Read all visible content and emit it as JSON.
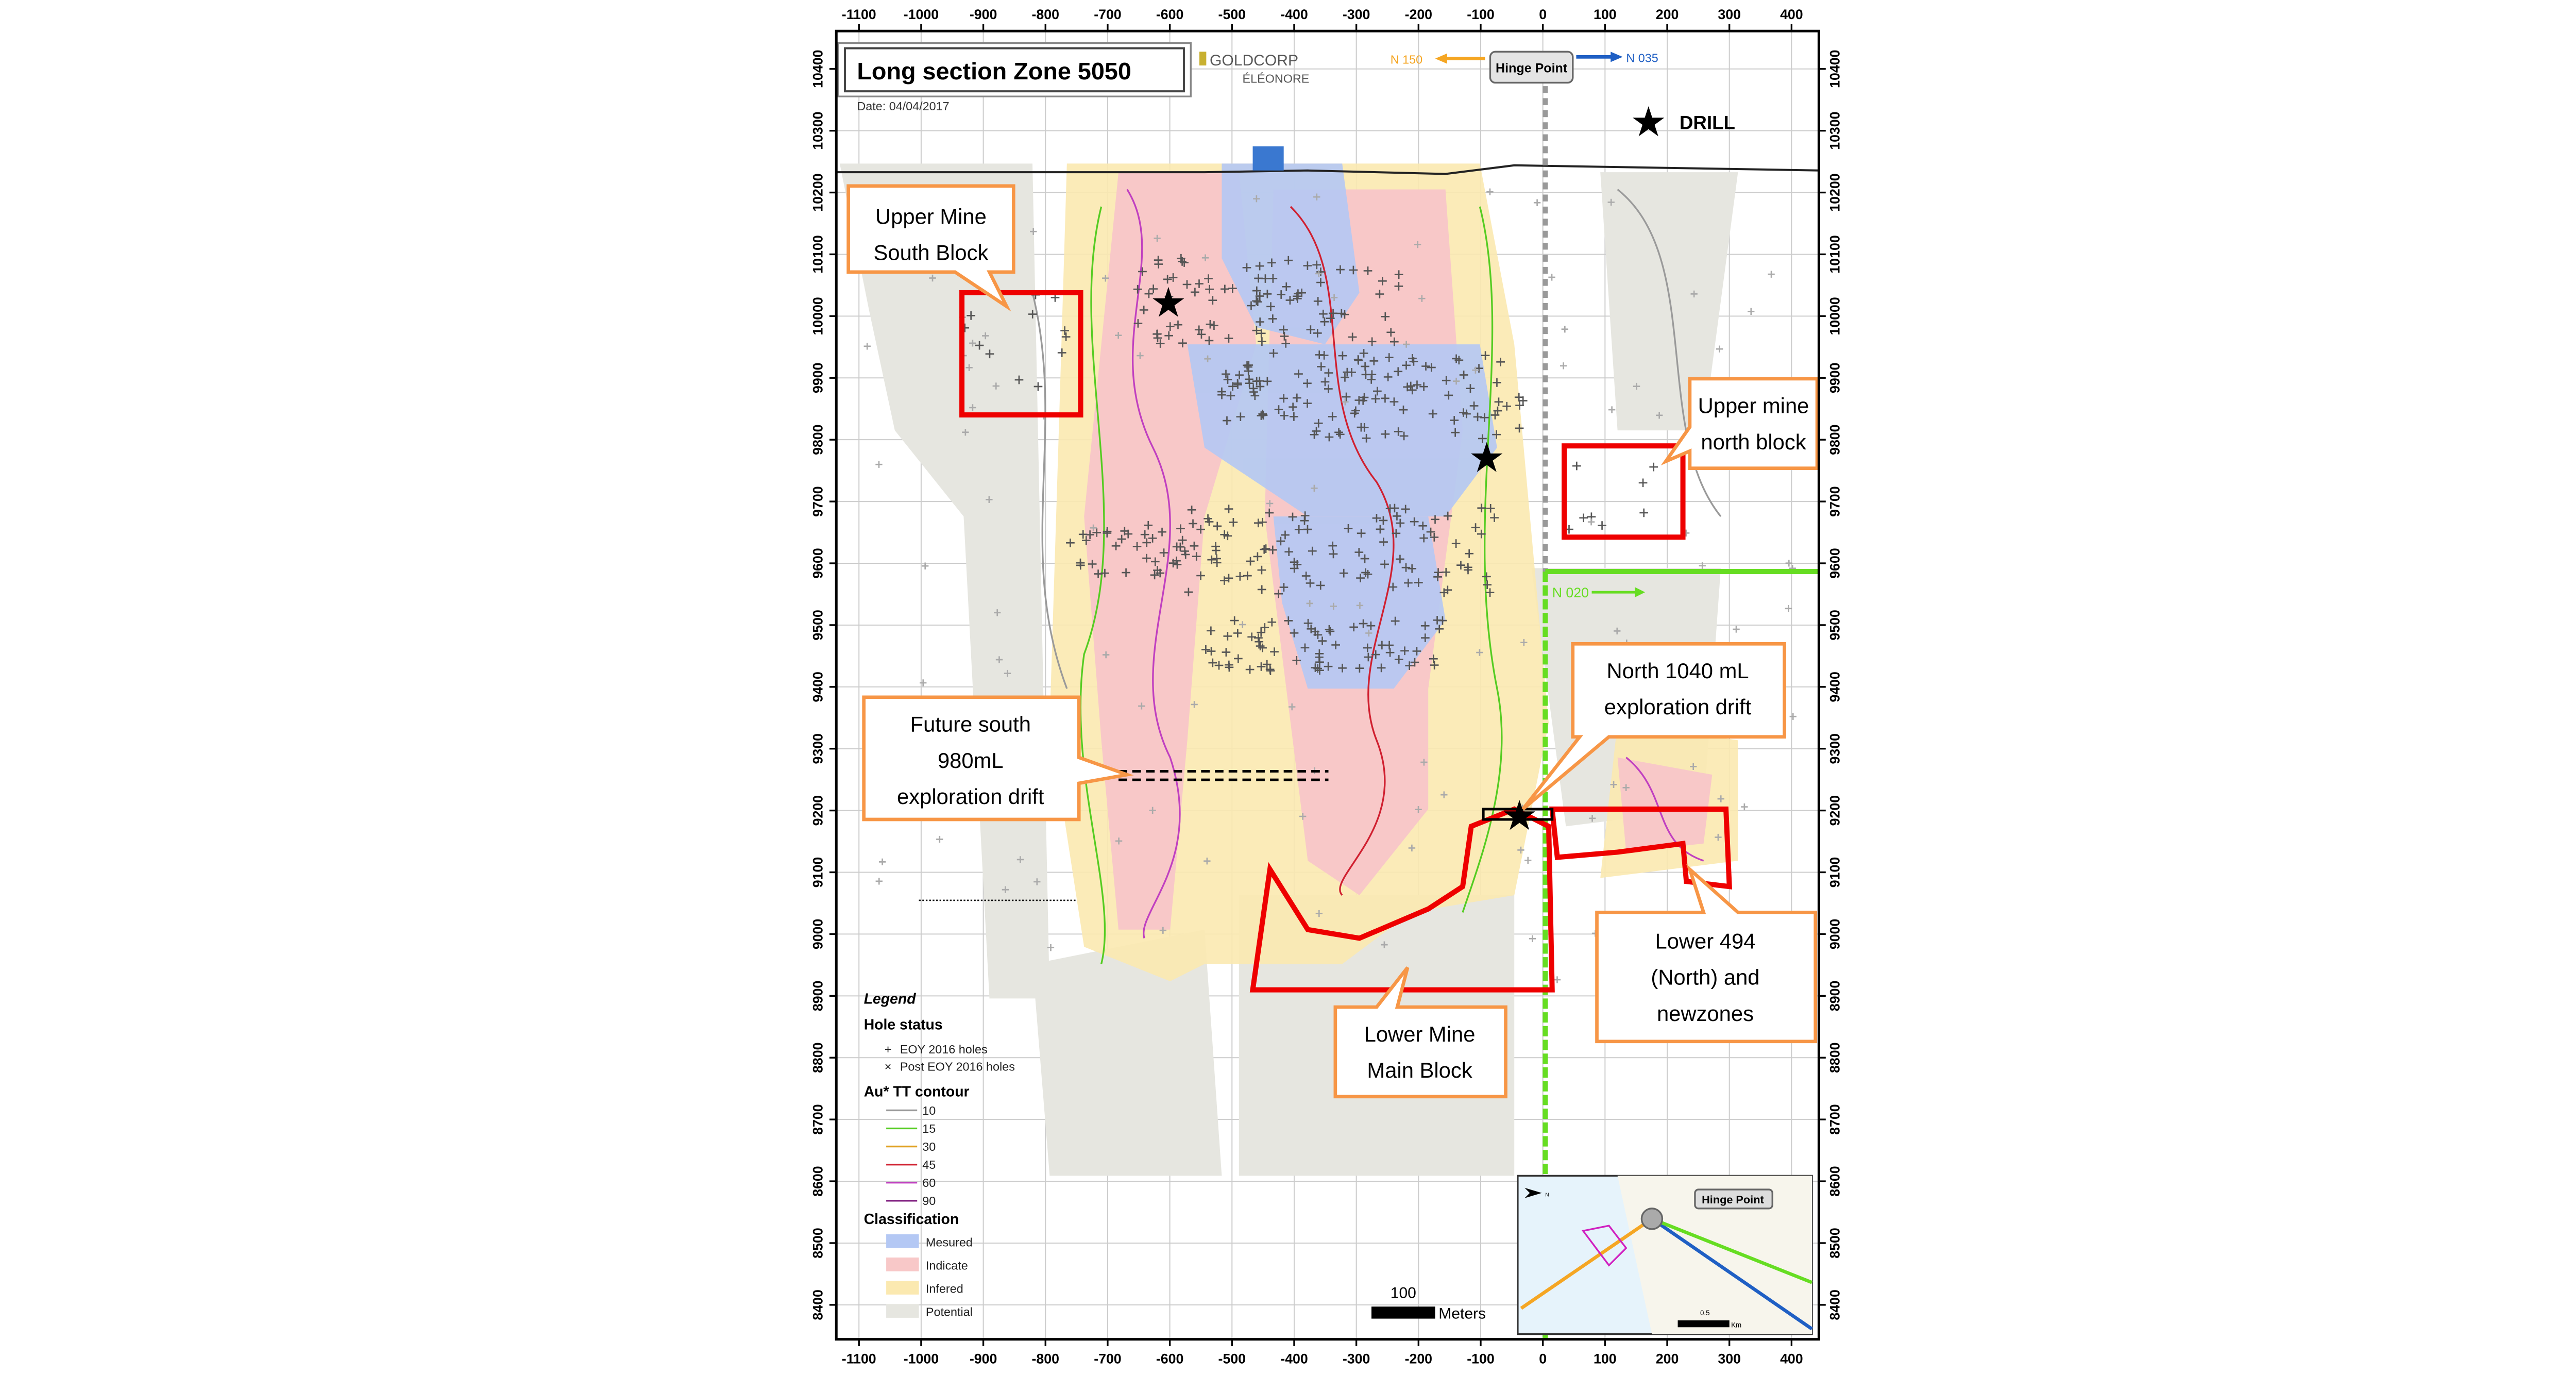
{
  "title": "Long section Zone 5050",
  "date": "Date: 04/04/2017",
  "logo": {
    "brand": "GOLDCORP",
    "site": "ÉLÉONORE"
  },
  "hinge_point": {
    "label": "Hinge Point",
    "left_arrow": "N 150",
    "right_arrow": "N 035",
    "left_color": "#f5a623",
    "right_color": "#1f5fc4"
  },
  "green_arrow": {
    "label": "N 020",
    "color": "#66dd22"
  },
  "drill_label": "DRILL",
  "axes": {
    "x_ticks": [
      -1100,
      -1000,
      -900,
      -800,
      -700,
      -600,
      -500,
      -400,
      -300,
      -200,
      -100,
      0,
      100,
      200,
      300,
      400
    ],
    "y_ticks": [
      8400,
      8500,
      8600,
      8700,
      8800,
      8900,
      9000,
      9100,
      9200,
      9300,
      9400,
      9500,
      9600,
      9700,
      9800,
      9900,
      10000,
      10100,
      10200,
      10300,
      10400
    ],
    "x_range": [
      -1100,
      400
    ],
    "y_range": [
      8400,
      10400
    ]
  },
  "callouts": [
    {
      "id": "upper-mine-south-block",
      "lines": [
        "Upper Mine",
        "South Block"
      ]
    },
    {
      "id": "upper-mine-north-block",
      "lines": [
        "Upper mine",
        "north block"
      ]
    },
    {
      "id": "future-south-drift",
      "lines": [
        "Future south",
        "980mL",
        "exploration drift"
      ]
    },
    {
      "id": "north-1040-drift",
      "lines": [
        "North 1040 mL",
        "exploration drift"
      ]
    },
    {
      "id": "lower-494",
      "lines": [
        "Lower 494",
        "(North) and",
        "newzones"
      ]
    },
    {
      "id": "lower-mine-main-block",
      "lines": [
        "Lower Mine",
        "Main Block"
      ]
    }
  ],
  "legend": {
    "title": "Legend",
    "hole_status": {
      "heading": "Hole status",
      "items": [
        "EOY 2016 holes",
        "Post EOY 2016 holes"
      ]
    },
    "contour": {
      "heading": "Au* TT contour",
      "items": [
        {
          "label": "10",
          "color": "#9a9a9a"
        },
        {
          "label": "15",
          "color": "#55cc22"
        },
        {
          "label": "30",
          "color": "#e0a020"
        },
        {
          "label": "45",
          "color": "#d02030"
        },
        {
          "label": "60",
          "color": "#c040c0"
        },
        {
          "label": "90",
          "color": "#802080"
        }
      ]
    },
    "classification": {
      "heading": "Classification",
      "items": [
        {
          "label": "Mesured",
          "color": "#b4c8f4"
        },
        {
          "label": "Indicate",
          "color": "#f8c8c8"
        },
        {
          "label": "Infered",
          "color": "#fbe9b0"
        },
        {
          "label": "Potential",
          "color": "#e6e6e0"
        }
      ]
    }
  },
  "scale_bar": {
    "value": "100",
    "unit": "Meters"
  },
  "inset": {
    "label": "Hinge Point",
    "scale_value": "0.5",
    "scale_unit": "Km",
    "north": "N"
  }
}
